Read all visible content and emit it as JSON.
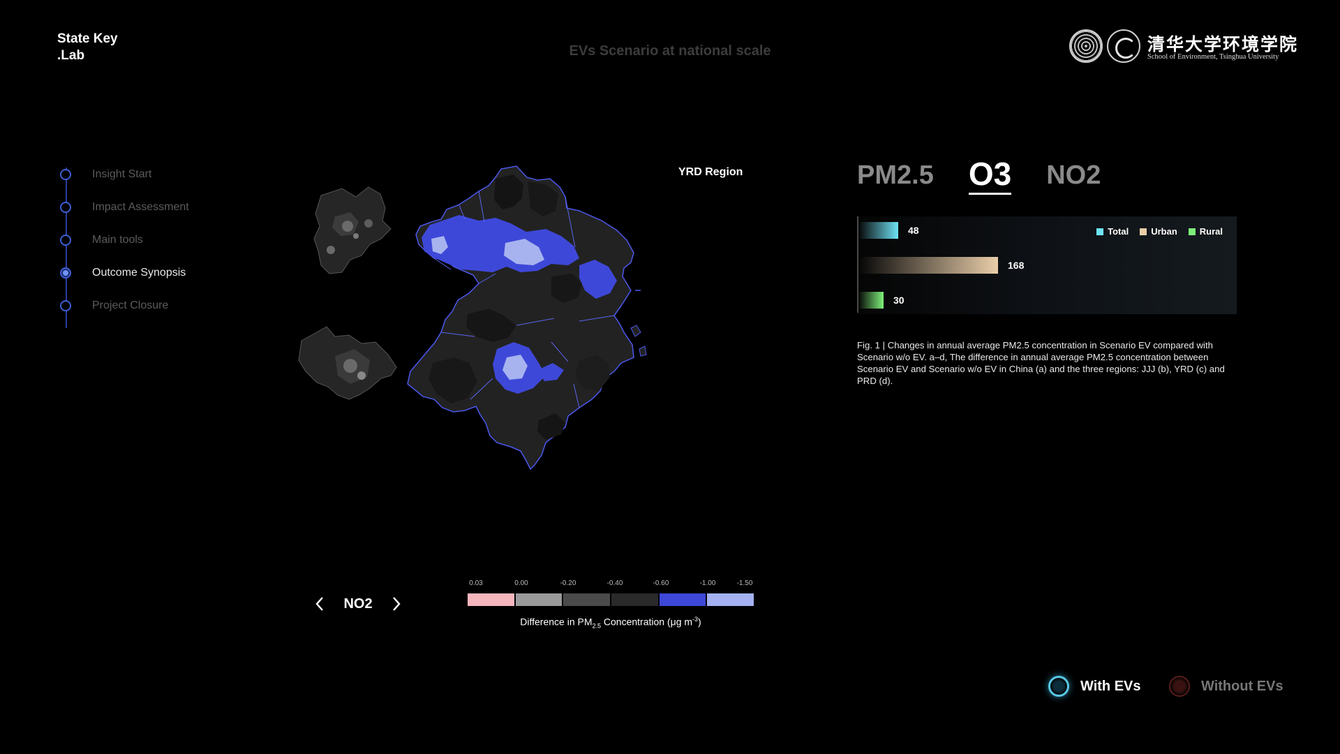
{
  "brand": {
    "line1": "State Key",
    "line2": ".Lab"
  },
  "page_title": "EVs Scenario at national scale",
  "logo": {
    "cn": "清华大学环境学院",
    "en": "School of Environment, Tsinghua University"
  },
  "timeline": {
    "steps": [
      {
        "label": "Insight Start",
        "active": false
      },
      {
        "label": "Impact Assessment",
        "active": false
      },
      {
        "label": "Main tools",
        "active": false
      },
      {
        "label": "Outcome Synopsis",
        "active": true
      },
      {
        "label": "Project Closure",
        "active": false
      }
    ]
  },
  "map": {
    "region_label": "YRD Region"
  },
  "pollutant_nav": {
    "value": "NO2"
  },
  "colorbar": {
    "ticks": [
      "0.03",
      "0.00",
      "-0.20",
      "-0.40",
      "-0.60",
      "-1.00",
      "-1.50"
    ],
    "colors": [
      "#f6b6bd",
      "#9a9a9a",
      "#4b4b4b",
      "#2a2a2a",
      "#3e48d8",
      "#a4b2f2"
    ],
    "title_prefix": "Difference in PM",
    "title_sub": "2.5",
    "title_mid": " Concentration (μg m",
    "title_sup": "-3",
    "title_suffix": ")"
  },
  "tabs": [
    {
      "label": "PM2.5",
      "active": false
    },
    {
      "label": "O3",
      "active": true
    },
    {
      "label": "NO2",
      "active": false
    }
  ],
  "chart_data": {
    "type": "bar",
    "categories": [
      "Total",
      "Urban",
      "Rural"
    ],
    "values": [
      48,
      168,
      30
    ],
    "legend": [
      {
        "name": "Total",
        "color": "#6fe3f5"
      },
      {
        "name": "Urban",
        "color": "#e9cda8"
      },
      {
        "name": "Rural",
        "color": "#7ef07a"
      }
    ],
    "legend_position": "top-right",
    "orientation": "horizontal"
  },
  "caption": "Fig. 1 | Changes in annual average PM2.5 concentration in Scenario EV compared with Scenario w/o EV. a–d, The difference in annual average PM2.5 concentration between Scenario EV and Scenario w/o EV in China (a) and the three regions: JJJ (b), YRD (c) and PRD (d).",
  "toggles": {
    "with_label": "With EVs",
    "without_label": "Without EVs"
  }
}
